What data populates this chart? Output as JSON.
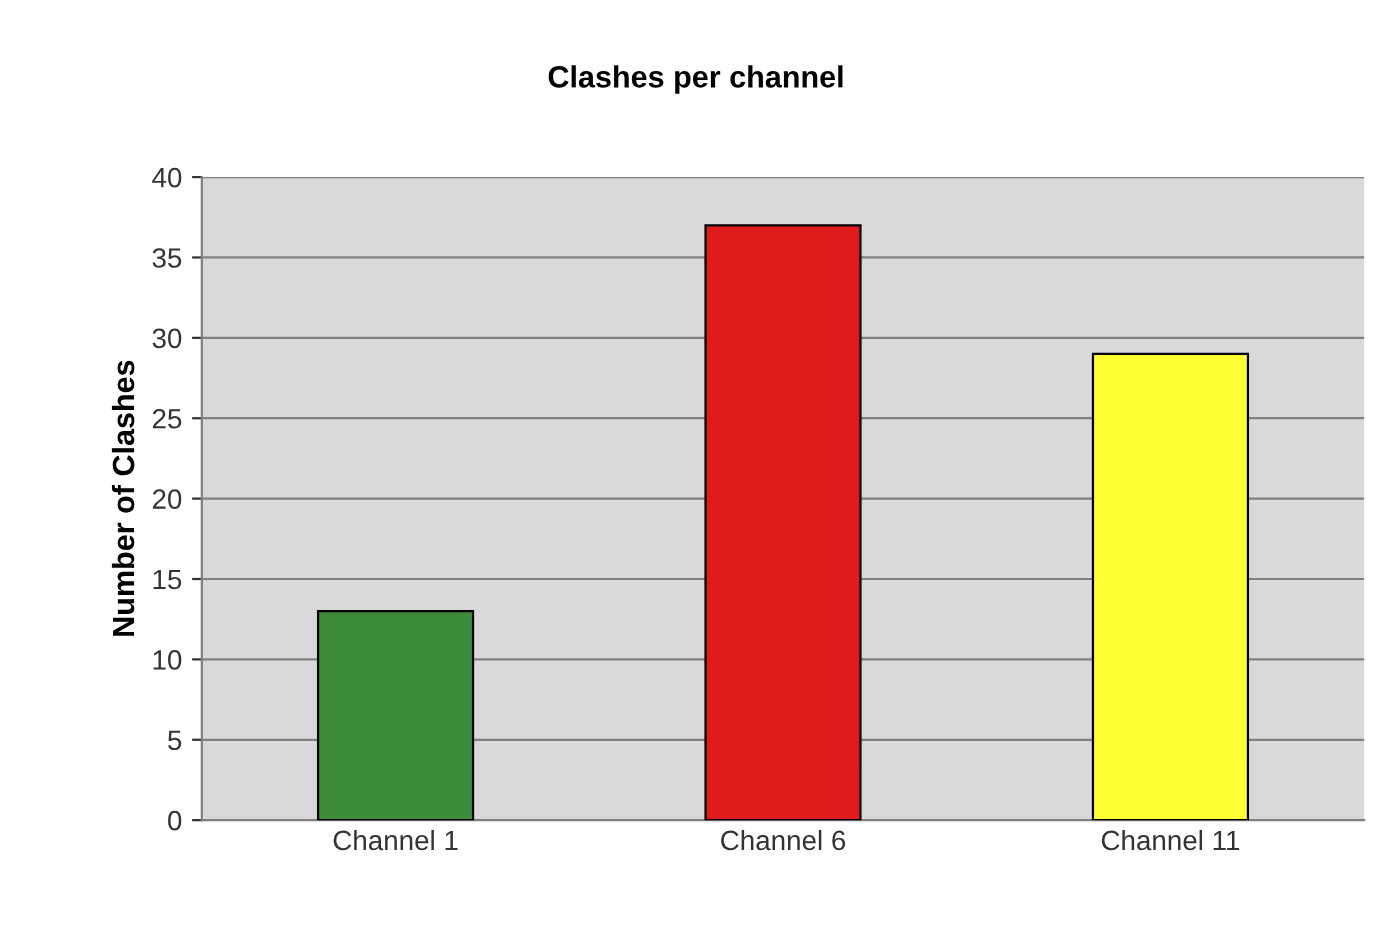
{
  "chart_data": {
    "type": "bar",
    "title": "Clashes per channel",
    "ylabel": "Number of Clashes",
    "categories": [
      "Channel 1",
      "Channel 6",
      "Channel 11"
    ],
    "values": [
      13,
      37,
      29
    ],
    "colors": [
      "#3c8c3c",
      "#e01b1b",
      "#ffff33"
    ],
    "ylim": [
      0,
      40
    ],
    "yticks": [
      0,
      5,
      10,
      15,
      20,
      25,
      30,
      35,
      40
    ],
    "grid": "y",
    "legend": false
  }
}
